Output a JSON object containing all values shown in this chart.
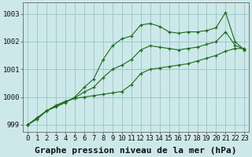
{
  "xlabel": "Graphe pression niveau de la mer (hPa)",
  "background_color": "#cce8e8",
  "plot_bg_color": "#cce8e8",
  "grid_color": "#99cccc",
  "line_color": "#1a6b1a",
  "x": [
    0,
    1,
    2,
    3,
    4,
    5,
    6,
    7,
    8,
    9,
    10,
    11,
    12,
    13,
    14,
    15,
    16,
    17,
    18,
    19,
    20,
    21,
    22,
    23
  ],
  "y_curve1": [
    999.0,
    999.2,
    999.5,
    999.65,
    999.8,
    1000.0,
    1000.35,
    1000.65,
    1001.35,
    1001.85,
    1002.1,
    1002.2,
    1002.6,
    1002.65,
    1002.55,
    1002.35,
    1002.3,
    1002.35,
    1002.35,
    1002.4,
    1002.5,
    1003.05,
    1002.0,
    1001.7
  ],
  "y_curve2": [
    999.0,
    999.25,
    999.5,
    999.7,
    999.85,
    999.95,
    1000.0,
    1000.05,
    1000.1,
    1000.15,
    1000.2,
    1000.45,
    1000.85,
    1001.0,
    1001.05,
    1001.1,
    1001.15,
    1001.2,
    1001.3,
    1001.4,
    1001.5,
    1001.65,
    1001.75,
    1001.75
  ],
  "y_curve3": [
    999.0,
    999.25,
    999.5,
    999.67,
    999.82,
    999.97,
    1000.18,
    1000.35,
    1000.7,
    1001.0,
    1001.15,
    1001.35,
    1001.7,
    1001.85,
    1001.8,
    1001.75,
    1001.7,
    1001.75,
    1001.8,
    1001.9,
    1002.0,
    1002.35,
    1001.87,
    1001.72
  ],
  "ylim": [
    998.75,
    1003.4
  ],
  "yticks": [
    999,
    1000,
    1001,
    1002,
    1003
  ],
  "xticks": [
    0,
    1,
    2,
    3,
    4,
    5,
    6,
    7,
    8,
    9,
    10,
    11,
    12,
    13,
    14,
    15,
    16,
    17,
    18,
    19,
    20,
    21,
    22,
    23
  ],
  "xlabel_fontsize": 8,
  "tick_fontsize": 6.5
}
